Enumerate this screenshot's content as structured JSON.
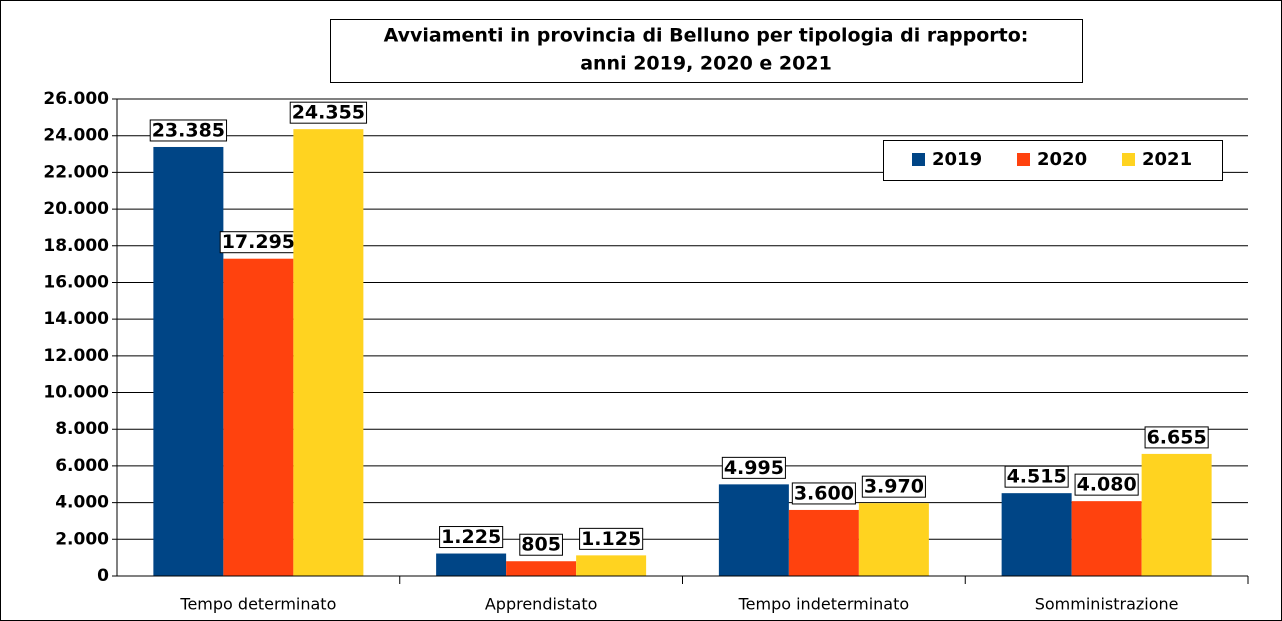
{
  "chart_data": {
    "type": "bar",
    "title": "Avviamenti in provincia di Belluno per tipologia di rapporto:",
    "subtitle": "anni 2019, 2020 e 2021",
    "categories": [
      "Tempo determinato",
      "Apprendistato",
      "Tempo indeterminato",
      "Somministrazione"
    ],
    "series": [
      {
        "name": "2019",
        "color": "#004586",
        "values": [
          23385,
          1225,
          4995,
          4515
        ],
        "value_labels": [
          "23.385",
          "1.225",
          "4.995",
          "4.515"
        ]
      },
      {
        "name": "2020",
        "color": "#ff420e",
        "values": [
          17295,
          805,
          3600,
          4080
        ],
        "value_labels": [
          "17.295",
          "805",
          "3.600",
          "4.080"
        ]
      },
      {
        "name": "2021",
        "color": "#ffd320",
        "values": [
          24355,
          1125,
          3970,
          6655
        ],
        "value_labels": [
          "24.355",
          "1.125",
          "3.970",
          "6.655"
        ]
      }
    ],
    "ylim": [
      0,
      26000
    ],
    "yticks": [
      0,
      {
        "value": 2000,
        "label": "2.000"
      },
      {
        "value": 4000,
        "label": "4.000"
      },
      {
        "value": 6000,
        "label": "6.000"
      },
      {
        "value": 8000,
        "label": "8.000"
      },
      {
        "value": 10000,
        "label": "10.000"
      },
      {
        "value": 12000,
        "label": "12.000"
      },
      {
        "value": 14000,
        "label": "14.000"
      },
      {
        "value": 16000,
        "label": "16.000"
      },
      {
        "value": 18000,
        "label": "18.000"
      },
      {
        "value": 20000,
        "label": "20.000"
      },
      {
        "value": 22000,
        "label": "22.000"
      },
      {
        "value": 24000,
        "label": "24.000"
      },
      {
        "value": 26000,
        "label": "26.000"
      }
    ],
    "grid": true,
    "legend": "upper right"
  }
}
